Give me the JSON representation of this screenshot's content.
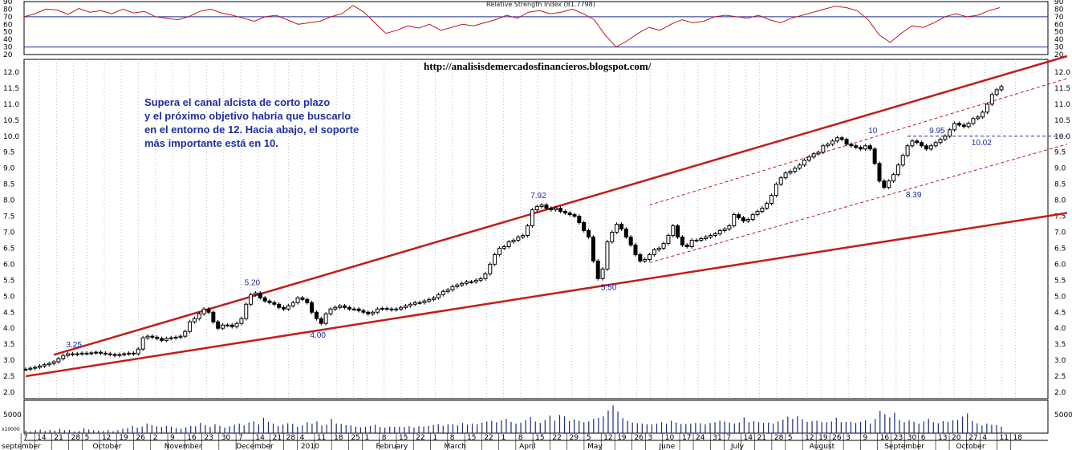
{
  "chart_data": {
    "type": "candlestick",
    "url_text": "http://analisisdemercadosfinancieros.blogspot.com/",
    "comment_lines": [
      "Supera el canal alcista de corto plazo",
      "y el próximo objetivo habría que buscarlo",
      "en el entorno de 12. Hacia abajo, el soporte",
      "más importante está en 10."
    ],
    "rsi": {
      "title": "Relative Strength Index (81.7798)",
      "ylim": [
        20,
        90
      ],
      "ticks": [
        "90",
        "80",
        "70",
        "60",
        "50",
        "40",
        "30",
        "20"
      ],
      "levels": [
        70,
        30
      ],
      "line_color": "#c01818",
      "values": [
        70,
        74,
        80,
        79,
        73,
        81,
        76,
        78,
        74,
        80,
        75,
        77,
        70,
        68,
        66,
        70,
        77,
        80,
        75,
        72,
        68,
        64,
        70,
        72,
        66,
        60,
        62,
        64,
        70,
        74,
        85,
        76,
        62,
        48,
        52,
        58,
        55,
        60,
        52,
        56,
        60,
        58,
        62,
        66,
        72,
        68,
        76,
        78,
        74,
        76,
        80,
        74,
        66,
        46,
        30,
        38,
        48,
        56,
        52,
        60,
        66,
        62,
        64,
        70,
        72,
        70,
        68,
        72,
        66,
        62,
        68,
        72,
        76,
        80,
        84,
        82,
        78,
        66,
        46,
        36,
        48,
        58,
        56,
        62,
        70,
        74,
        70,
        72,
        78,
        82
      ]
    },
    "price": {
      "ylim": [
        1.8,
        12.4
      ],
      "yticks": [
        "12.0",
        "11.5",
        "11.0",
        "10.5",
        "10.0",
        "9.5",
        "9.0",
        "8.5",
        "8.0",
        "7.5",
        "7.0",
        "6.5",
        "6.0",
        "5.5",
        "5.0",
        "4.5",
        "4.0",
        "3.5",
        "3.0",
        "2.5",
        "2.0"
      ],
      "ytick_values": [
        12.0,
        11.5,
        11.0,
        10.5,
        10.0,
        9.5,
        9.0,
        8.5,
        8.0,
        7.5,
        7.0,
        6.5,
        6.0,
        5.5,
        5.0,
        4.5,
        4.0,
        3.5,
        3.0,
        2.5,
        2.0
      ],
      "candle_color": "#000000",
      "closes": [
        2.72,
        2.75,
        2.78,
        2.82,
        2.86,
        2.9,
        2.95,
        3.05,
        3.15,
        3.2,
        3.18,
        3.2,
        3.22,
        3.21,
        3.23,
        3.25,
        3.22,
        3.2,
        3.18,
        3.15,
        3.18,
        3.2,
        3.22,
        3.2,
        3.35,
        3.7,
        3.75,
        3.72,
        3.68,
        3.62,
        3.68,
        3.7,
        3.72,
        3.75,
        3.9,
        4.2,
        4.3,
        4.45,
        4.6,
        4.5,
        4.2,
        4.0,
        4.1,
        4.1,
        4.05,
        4.15,
        4.3,
        4.75,
        5.05,
        5.1,
        4.95,
        4.85,
        4.8,
        4.75,
        4.65,
        4.6,
        4.7,
        4.8,
        4.95,
        4.9,
        4.8,
        4.5,
        4.3,
        4.15,
        4.45,
        4.6,
        4.65,
        4.7,
        4.65,
        4.6,
        4.6,
        4.55,
        4.5,
        4.45,
        4.5,
        4.6,
        4.62,
        4.6,
        4.58,
        4.6,
        4.65,
        4.7,
        4.75,
        4.8,
        4.8,
        4.85,
        4.9,
        4.95,
        5.05,
        5.15,
        5.2,
        5.3,
        5.35,
        5.4,
        5.45,
        5.45,
        5.5,
        5.55,
        5.7,
        6.0,
        6.3,
        6.5,
        6.55,
        6.7,
        6.75,
        6.85,
        6.9,
        7.2,
        7.7,
        7.8,
        7.85,
        7.75,
        7.7,
        7.75,
        7.65,
        7.6,
        7.55,
        7.5,
        7.3,
        7.05,
        6.85,
        6.1,
        5.55,
        5.85,
        6.7,
        7.0,
        7.25,
        7.1,
        6.85,
        6.6,
        6.3,
        6.1,
        6.15,
        6.3,
        6.45,
        6.5,
        6.65,
        6.9,
        7.2,
        6.85,
        6.6,
        6.55,
        6.75,
        6.75,
        6.8,
        6.85,
        6.9,
        6.95,
        7.05,
        7.1,
        7.2,
        7.55,
        7.45,
        7.35,
        7.4,
        7.55,
        7.65,
        7.75,
        7.9,
        8.15,
        8.5,
        8.7,
        8.85,
        8.9,
        9.0,
        9.1,
        9.25,
        9.35,
        9.45,
        9.5,
        9.7,
        9.75,
        9.85,
        9.95,
        9.9,
        9.75,
        9.7,
        9.65,
        9.6,
        9.7,
        9.6,
        9.15,
        8.6,
        8.4,
        8.6,
        8.8,
        9.1,
        9.4,
        9.7,
        9.85,
        9.8,
        9.7,
        9.6,
        9.7,
        9.8,
        9.9,
        10.0,
        10.2,
        10.4,
        10.35,
        10.3,
        10.4,
        10.55,
        10.6,
        10.75,
        11.0,
        11.3,
        11.45,
        11.55
      ],
      "annotations": [
        "3.25",
        "5.20",
        "4.00",
        "7.92",
        "5.50",
        "10",
        "9.95",
        "10.02",
        "8.39"
      ],
      "annotation_values": [
        {
          "label": "3.25",
          "x": 10,
          "y": 3.25
        },
        {
          "label": "5.20",
          "x": 48,
          "y": 5.2
        },
        {
          "label": "4.00",
          "x": 62,
          "y": 4.0
        },
        {
          "label": "7.92",
          "x": 109,
          "y": 7.92
        },
        {
          "label": "5.50",
          "x": 124,
          "y": 5.5
        },
        {
          "label": "10",
          "x": 181,
          "y": 9.95
        },
        {
          "label": "9.95",
          "x": 194,
          "y": 9.95
        },
        {
          "label": "10.02",
          "x": 203,
          "y": 10.02
        },
        {
          "label": "8.39",
          "x": 189,
          "y": 8.39
        }
      ],
      "trendlines": [
        {
          "name": "upper-channel",
          "color": "#c21c1c",
          "x1": 6,
          "y1": 3.17,
          "x2": 222,
          "y2": 12.5
        },
        {
          "name": "lower-channel",
          "color": "#c21c1c",
          "x1": 0,
          "y1": 2.5,
          "x2": 222,
          "y2": 7.6
        },
        {
          "name": "short-upper",
          "color": "#c21c1c",
          "dashed": true,
          "x1": 133,
          "y1": 7.85,
          "x2": 222,
          "y2": 11.8
        },
        {
          "name": "short-lower",
          "color": "#c21c1c",
          "dashed": true,
          "x1": 133,
          "y1": 6.05,
          "x2": 222,
          "y2": 9.75
        },
        {
          "name": "support-10",
          "color": "#1f2fa0",
          "dashed": true,
          "x1": 188,
          "y1": 10.0,
          "x2": 222,
          "y2": 10.0
        }
      ]
    },
    "volume": {
      "ytick": "5000",
      "ylim": [
        0,
        9000
      ],
      "scale_label": "x10000",
      "values": [
        700,
        500,
        800,
        1000,
        600,
        900,
        700,
        1200,
        800,
        900,
        500,
        600,
        1300,
        1000,
        800,
        700,
        600,
        900,
        500,
        800,
        1200,
        1400,
        2000,
        1500,
        1800,
        2600,
        2200,
        1900,
        1700,
        2000,
        1800,
        1400,
        1200,
        1600,
        2000,
        1900,
        2800,
        2200,
        1700,
        2400,
        2000,
        1500,
        1900,
        2300,
        2600,
        2100,
        2900,
        3200,
        2400,
        4200,
        3100,
        2600,
        2000,
        2300,
        2700,
        2500,
        1800,
        2100,
        3000,
        2600,
        3200,
        2100,
        2300,
        3900,
        2600,
        2500,
        2200,
        2100,
        1800,
        1600,
        1700,
        2000,
        2300,
        1700,
        1500,
        1800,
        1700,
        1800,
        1700,
        1900,
        1500,
        1900,
        1800,
        2000,
        2200,
        2500,
        2000,
        2400,
        2400,
        2100,
        2800,
        2300,
        2600,
        2400,
        2900,
        3200,
        3400,
        3000,
        3500,
        3900,
        3100,
        2600,
        2900,
        3600,
        4400,
        3200,
        2800,
        3600,
        4800,
        3400,
        5000,
        4600,
        3300,
        3700,
        3400,
        3000,
        3200,
        3900,
        4200,
        4600,
        6200,
        7600,
        5900,
        4100,
        3400,
        2900,
        2700,
        2600,
        2400,
        2400,
        2600,
        3000,
        2600,
        3400,
        2900,
        2500,
        2500,
        2600,
        2800,
        2700,
        2400,
        2800,
        3000,
        3400,
        3200,
        2900,
        2600,
        2900,
        4300,
        3000,
        3300,
        3000,
        2800,
        2900,
        2600,
        3200,
        3700,
        4500,
        3900,
        4700,
        3800,
        3100,
        3300,
        3400,
        3000,
        3000,
        3200,
        4200,
        3000,
        3100,
        3100,
        2800,
        3100,
        3500,
        2600,
        3900,
        6100,
        5200,
        4300,
        5600,
        3600,
        3000,
        3500,
        3100,
        2600,
        3200,
        3900,
        3000,
        2700,
        3300,
        3100,
        3500,
        3600,
        4500,
        5400,
        3300,
        2700,
        2100,
        2600,
        2300,
        2200,
        1800
      ]
    },
    "x_axis": {
      "day_labels": [
        {
          "i": 0,
          "t": "7"
        },
        {
          "i": 4,
          "t": "14"
        },
        {
          "i": 9,
          "t": "21"
        },
        {
          "i": 14,
          "t": "28"
        },
        {
          "i": 18,
          "t": "5"
        },
        {
          "i": 23,
          "t": "12"
        },
        {
          "i": 28,
          "t": "19"
        },
        {
          "i": 33,
          "t": "26"
        },
        {
          "i": 38,
          "t": "2"
        },
        {
          "i": 43,
          "t": "9"
        },
        {
          "i": 48,
          "t": "16"
        },
        {
          "i": 53,
          "t": "23"
        },
        {
          "i": 58,
          "t": "30"
        },
        {
          "i": 63,
          "t": "7"
        },
        {
          "i": 68,
          "t": "14"
        },
        {
          "i": 73,
          "t": "21"
        },
        {
          "i": 77,
          "t": "28"
        },
        {
          "i": 81,
          "t": "4"
        },
        {
          "i": 86,
          "t": "11"
        },
        {
          "i": 91,
          "t": "18"
        },
        {
          "i": 96,
          "t": "25"
        },
        {
          "i": 100,
          "t": "1"
        },
        {
          "i": 105,
          "t": "8"
        },
        {
          "i": 110,
          "t": "15"
        },
        {
          "i": 115,
          "t": "22"
        },
        {
          "i": 120,
          "t": "1"
        },
        {
          "i": 125,
          "t": "8"
        },
        {
          "i": 130,
          "t": "15"
        },
        {
          "i": 135,
          "t": "22"
        },
        {
          "i": 140,
          "t": "1"
        },
        {
          "i": 145,
          "t": "8"
        },
        {
          "i": 150,
          "t": "15"
        },
        {
          "i": 155,
          "t": "22"
        },
        {
          "i": 160,
          "t": "29"
        },
        {
          "i": 165,
          "t": "5"
        },
        {
          "i": 170,
          "t": "12"
        },
        {
          "i": 174,
          "t": "19"
        },
        {
          "i": 179,
          "t": "26"
        },
        {
          "i": 183,
          "t": "3"
        },
        {
          "i": 188,
          "t": "10"
        },
        {
          "i": 193,
          "t": "17"
        },
        {
          "i": 197,
          "t": "24"
        },
        {
          "i": 202,
          "t": "31"
        },
        {
          "i": 206,
          "t": "7"
        },
        {
          "i": 211,
          "t": "14"
        },
        {
          "i": 215,
          "t": "21"
        },
        {
          "i": 220,
          "t": "28"
        },
        {
          "i": 224,
          "t": "5"
        },
        {
          "i": 229,
          "t": "12"
        },
        {
          "i": 233,
          "t": "19"
        },
        {
          "i": 237,
          "t": "26"
        },
        {
          "i": 241,
          "t": "3"
        },
        {
          "i": 246,
          "t": "9"
        },
        {
          "i": 251,
          "t": "16"
        },
        {
          "i": 255,
          "t": "23"
        },
        {
          "i": 259,
          "t": "30"
        },
        {
          "i": 263,
          "t": "6"
        },
        {
          "i": 268,
          "t": "13"
        },
        {
          "i": 272,
          "t": "20"
        },
        {
          "i": 277,
          "t": "27"
        },
        {
          "i": 281,
          "t": "4"
        },
        {
          "i": 286,
          "t": "11"
        },
        {
          "i": 290,
          "t": "18"
        }
      ],
      "month_labels": [
        {
          "i": 0,
          "t": "september"
        },
        {
          "i": 21,
          "t": "October"
        },
        {
          "i": 42,
          "t": "November"
        },
        {
          "i": 63,
          "t": "December"
        },
        {
          "i": 82,
          "t": "2010"
        },
        {
          "i": 104,
          "t": "February"
        },
        {
          "i": 124,
          "t": "March"
        },
        {
          "i": 146,
          "t": "April"
        },
        {
          "i": 166,
          "t": "May"
        },
        {
          "i": 187,
          "t": "June"
        },
        {
          "i": 208,
          "t": "July"
        },
        {
          "i": 231,
          "t": "August"
        },
        {
          "i": 253,
          "t": "September"
        },
        {
          "i": 274,
          "t": "October"
        }
      ]
    }
  }
}
